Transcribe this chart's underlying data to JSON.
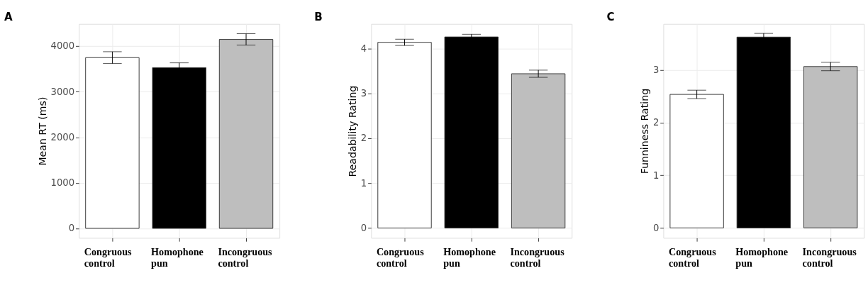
{
  "chart_data": [
    {
      "type": "bar",
      "title": "A",
      "ylabel": "Mean RT (ms)",
      "categories": [
        "Congruous control",
        "Homophone pun",
        "Incongruous control"
      ],
      "values": [
        3750,
        3530,
        4150
      ],
      "colors": [
        "#ffffff",
        "#000000",
        "#bebebe"
      ],
      "errors": [
        130,
        105,
        125
      ],
      "ylim": [
        -210,
        4490
      ],
      "yticks": [
        0,
        1000,
        2000,
        3000,
        4000
      ],
      "grid": true
    },
    {
      "type": "bar",
      "title": "B",
      "ylabel": "Readability Rating",
      "categories": [
        "Congruous control",
        "Homophone pun",
        "Incongruous control"
      ],
      "values": [
        4.14,
        4.26,
        3.44
      ],
      "colors": [
        "#ffffff",
        "#000000",
        "#bebebe"
      ],
      "errors": [
        0.07,
        0.06,
        0.08
      ],
      "ylim": [
        -0.22,
        4.55
      ],
      "yticks": [
        0,
        1,
        2,
        3,
        4
      ],
      "grid": true
    },
    {
      "type": "bar",
      "title": "C",
      "ylabel": "Funniness Rating",
      "categories": [
        "Congruous control",
        "Homophone pun",
        "Incongruous control"
      ],
      "values": [
        2.54,
        3.63,
        3.07
      ],
      "colors": [
        "#ffffff",
        "#000000",
        "#bebebe"
      ],
      "errors": [
        0.08,
        0.07,
        0.08
      ],
      "ylim": [
        -0.19,
        3.88
      ],
      "yticks": [
        0,
        1,
        2,
        3
      ],
      "grid": true
    }
  ]
}
